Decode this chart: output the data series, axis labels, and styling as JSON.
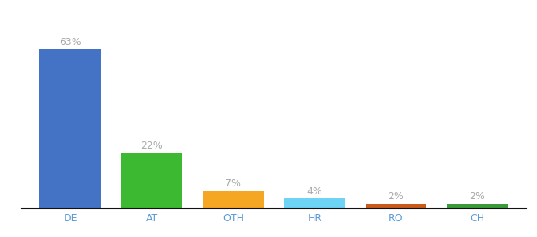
{
  "categories": [
    "DE",
    "AT",
    "OTH",
    "HR",
    "RO",
    "CH"
  ],
  "values": [
    63,
    22,
    7,
    4,
    2,
    2
  ],
  "bar_colors": [
    "#4472c4",
    "#3cb930",
    "#f5a623",
    "#6dd4f5",
    "#c85a1a",
    "#3a9a3a"
  ],
  "labels": [
    "63%",
    "22%",
    "7%",
    "4%",
    "2%",
    "2%"
  ],
  "ylim": [
    0,
    75
  ],
  "background_color": "#ffffff",
  "label_color": "#aaaaaa",
  "label_fontsize": 9,
  "tick_fontsize": 9,
  "tick_color": "#5b9bd5",
  "bar_width": 0.75,
  "bottom_color": "#111111"
}
